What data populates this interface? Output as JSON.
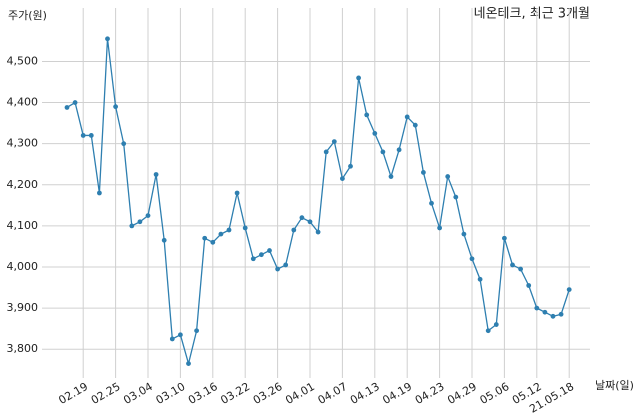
{
  "chart_data": {
    "type": "line",
    "title": "네온테크, 최근 3개월",
    "y_label": "주가(원)",
    "x_label": "날짜(일)",
    "categories": [
      null,
      null,
      "02.19",
      null,
      null,
      null,
      "02.25",
      null,
      null,
      null,
      "03.04",
      null,
      null,
      null,
      "03.10",
      null,
      null,
      null,
      "03.16",
      null,
      null,
      null,
      "03.22",
      null,
      null,
      null,
      "03.26",
      null,
      null,
      null,
      "04.01",
      null,
      null,
      null,
      "04.07",
      null,
      null,
      null,
      "04.13",
      null,
      null,
      null,
      "04.19",
      null,
      null,
      null,
      "04.23",
      null,
      null,
      null,
      "04.29",
      null,
      null,
      null,
      "05.06",
      null,
      null,
      null,
      "05.12",
      null,
      null,
      null,
      "21.05.18"
    ],
    "series": [
      {
        "name": "네온테크",
        "color": "#2e7fb0",
        "values": [
          4388,
          4400,
          4320,
          4320,
          4180,
          4555,
          4390,
          4300,
          4100,
          4110,
          4125,
          4225,
          4065,
          3825,
          3835,
          3765,
          3845,
          4070,
          4060,
          4080,
          4090,
          4180,
          4095,
          4020,
          4030,
          4040,
          3995,
          4005,
          4090,
          4120,
          4110,
          4085,
          4280,
          4305,
          4215,
          4245,
          4460,
          4370,
          4325,
          4280,
          4220,
          4285,
          4365,
          4345,
          4230,
          4155,
          4095,
          4220,
          4170,
          4080,
          4020,
          3970,
          3845,
          3860,
          4070,
          4005,
          3995,
          3955,
          3900,
          3890,
          3880,
          3885,
          3945
        ]
      }
    ],
    "ylim": [
      3730,
      4630
    ],
    "yticks": [
      {
        "value": 3800,
        "label": "3,800"
      },
      {
        "value": 3900,
        "label": "3,900"
      },
      {
        "value": 4000,
        "label": "4,000"
      },
      {
        "value": 4100,
        "label": "4,100"
      },
      {
        "value": 4200,
        "label": "4,200"
      },
      {
        "value": 4300,
        "label": "4,300"
      },
      {
        "value": 4400,
        "label": "4,400"
      },
      {
        "value": 4500,
        "label": "4,500"
      }
    ],
    "grid": true
  }
}
